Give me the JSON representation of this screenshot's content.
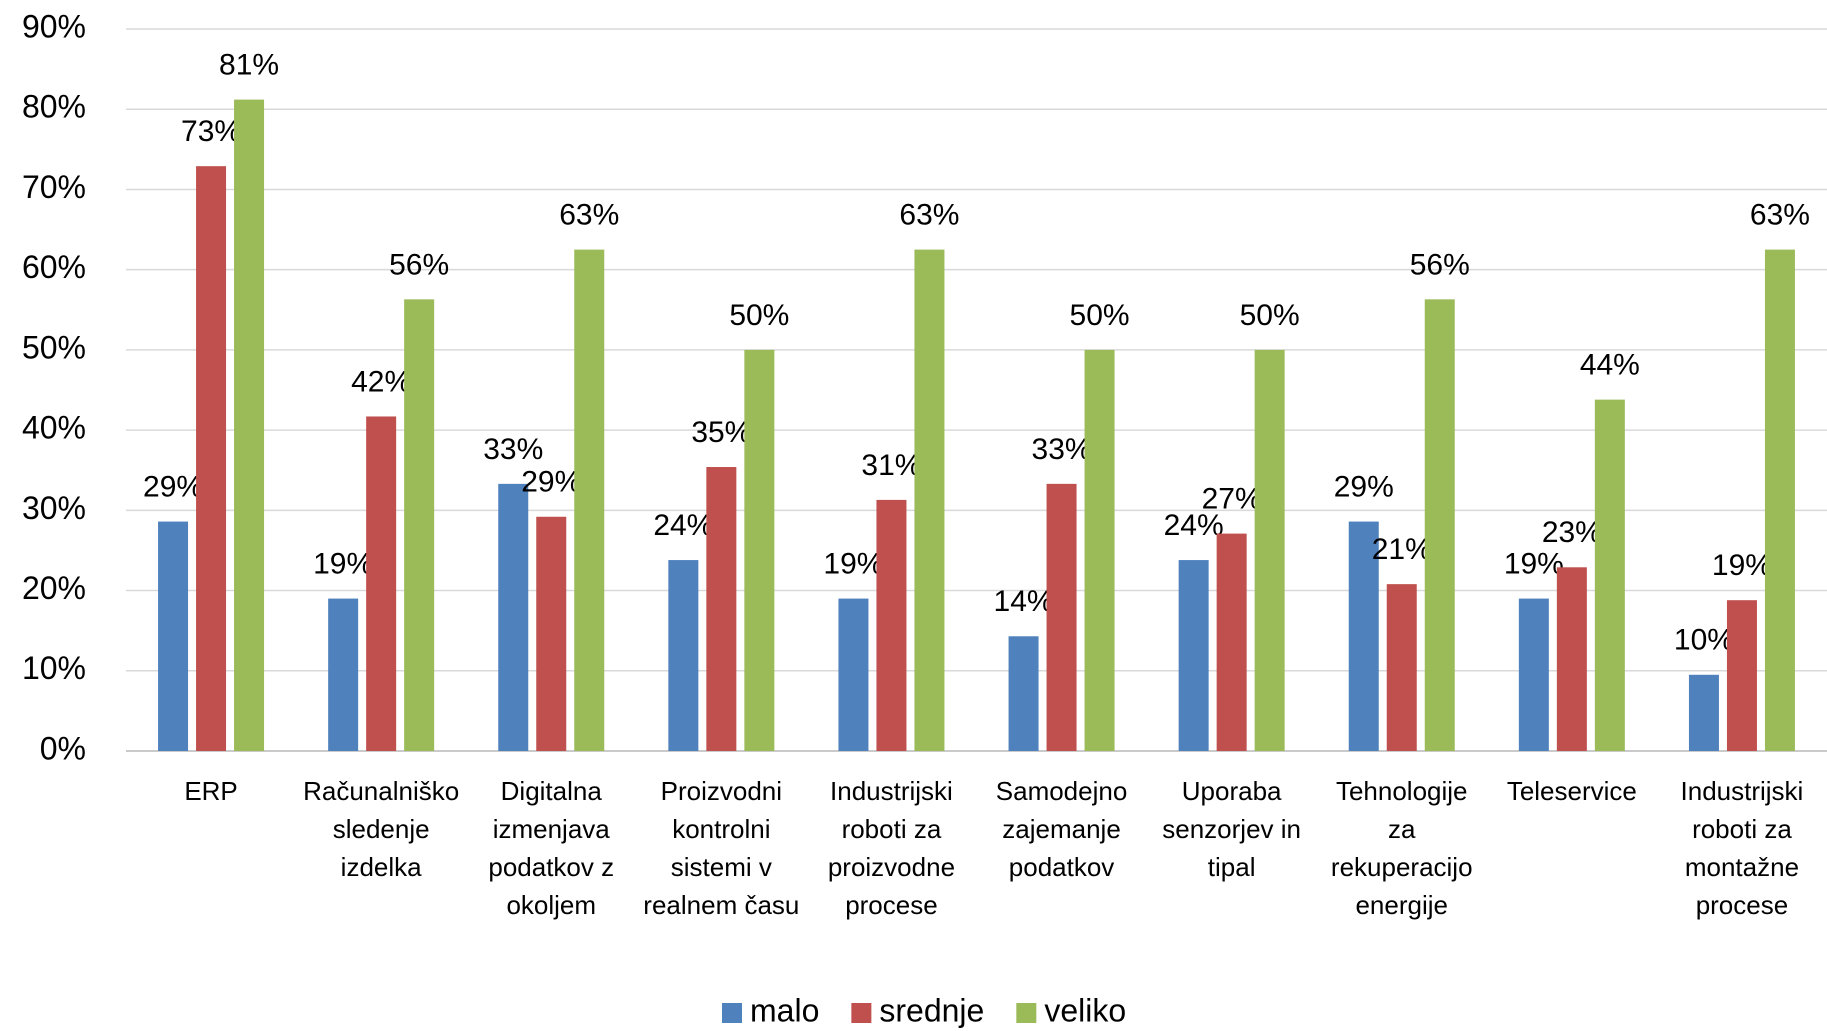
{
  "chart_data": {
    "type": "bar",
    "categories": [
      "ERP",
      "Računalniško sledenje izdelka",
      "Digitalna izmenjava podatkov z okoljem",
      "Proizvodni kontrolni sistemi v realnem času",
      "Industrijski roboti za proizvodne procese",
      "Samodejno zajemanje podatkov",
      "Uporaba senzorjev in tipal",
      "Tehnologije za rekuperacijo energije",
      "Teleservice",
      "Industrijski roboti za montažne procese"
    ],
    "series": [
      {
        "name": "malo",
        "color": "#4f81bd",
        "values": [
          28.6,
          19.0,
          33.3,
          23.8,
          19.0,
          14.3,
          23.8,
          28.6,
          19.0,
          9.5
        ],
        "value_labels": [
          "29%",
          "19%",
          "33%",
          "24%",
          "19%",
          "14%",
          "24%",
          "29%",
          "19%",
          "10%"
        ]
      },
      {
        "name": "srednje",
        "color": "#c0504d",
        "values": [
          72.9,
          41.7,
          29.2,
          35.4,
          31.3,
          33.3,
          27.1,
          20.8,
          22.9,
          18.8
        ],
        "value_labels": [
          "73%",
          "42%",
          "29%",
          "35%",
          "31%",
          "33%",
          "27%",
          "21%",
          "23%",
          "19%"
        ]
      },
      {
        "name": "veliko",
        "color": "#9bbb59",
        "values": [
          81.2,
          56.3,
          62.5,
          50.0,
          62.5,
          50.0,
          50.0,
          56.3,
          43.8,
          62.5
        ],
        "value_labels": [
          "81%",
          "56%",
          "63%",
          "50%",
          "63%",
          "50%",
          "50%",
          "56%",
          "44%",
          "63%"
        ]
      }
    ],
    "ylim": [
      0,
      90
    ],
    "yticks": [
      {
        "value": 0,
        "label": "0%"
      },
      {
        "value": 10,
        "label": "10%"
      },
      {
        "value": 20,
        "label": "20%"
      },
      {
        "value": 30,
        "label": "30%"
      },
      {
        "value": 40,
        "label": "40%"
      },
      {
        "value": 50,
        "label": "50%"
      },
      {
        "value": 60,
        "label": "60%"
      },
      {
        "value": 70,
        "label": "70%"
      },
      {
        "value": 80,
        "label": "80%"
      },
      {
        "value": 90,
        "label": "90%"
      }
    ],
    "grid": true,
    "legend": "bottom"
  }
}
